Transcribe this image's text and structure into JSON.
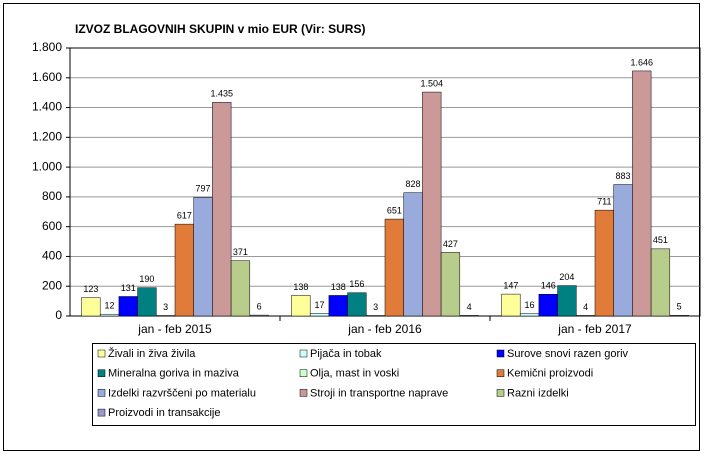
{
  "chart_data": {
    "type": "bar",
    "title": "IZVOZ BLAGOVNIH SKUPIN v mio EUR (Vir: SURS)",
    "categories": [
      "jan - feb 2015",
      "jan - feb 2016",
      "jan - feb 2017"
    ],
    "series": [
      {
        "name": "Živali in živa živila",
        "color": "#ffff99",
        "values": [
          123,
          138,
          147
        ]
      },
      {
        "name": "Pijača in tobak",
        "color": "#ccffff",
        "values": [
          12,
          17,
          16
        ]
      },
      {
        "name": "Surove snovi razen goriv",
        "color": "#0000ff",
        "values": [
          131,
          138,
          146
        ]
      },
      {
        "name": "Mineralna goriva in maziva",
        "color": "#008080",
        "values": [
          190,
          156,
          204
        ]
      },
      {
        "name": "Olja, mast in voski",
        "color": "#ccffcc",
        "values": [
          3,
          3,
          4
        ]
      },
      {
        "name": "Kemični proizvodi",
        "color": "#e07b39",
        "values": [
          617,
          651,
          711
        ]
      },
      {
        "name": "Izdelki razvrščeni po materialu",
        "color": "#99aadd",
        "values": [
          797,
          828,
          883
        ]
      },
      {
        "name": "Stroji in transportne naprave",
        "color": "#cc9999",
        "values": [
          1435,
          1504,
          1646
        ],
        "value_labels": [
          "1.435",
          "1.504",
          "1.646"
        ]
      },
      {
        "name": "Razni izdelki",
        "color": "#b8cc8c",
        "values": [
          371,
          427,
          451
        ]
      },
      {
        "name": "Proizvodi in transakcije",
        "color": "#9999cc",
        "values": [
          6,
          4,
          5
        ]
      }
    ],
    "ylim": [
      0,
      1800
    ],
    "yticks": [
      0,
      200,
      400,
      600,
      800,
      {
        "value": 1000,
        "label": "1.000"
      },
      {
        "value": 1200,
        "label": "1.200"
      },
      {
        "value": 1400,
        "label": "1.400"
      },
      {
        "value": 1600,
        "label": "1.600"
      },
      {
        "value": 1800,
        "label": "1.800"
      }
    ],
    "grid": true
  }
}
